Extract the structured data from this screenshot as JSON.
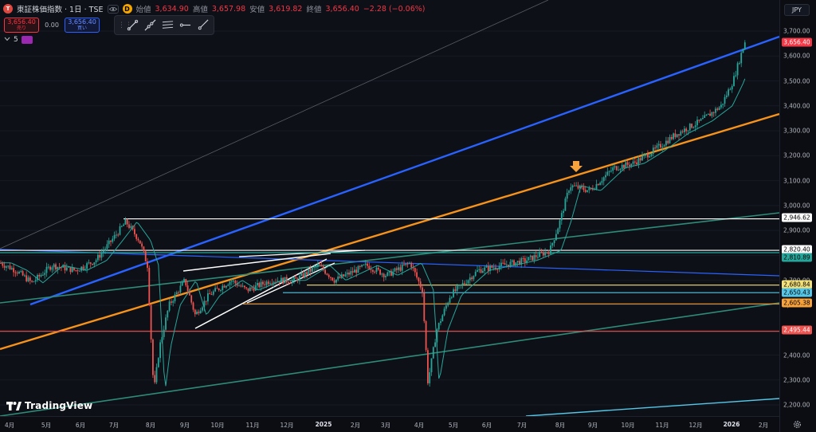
{
  "header": {
    "symbol_icon": "T",
    "symbol": "東証株価指数 · 1日 · TSE",
    "d_badge": "D",
    "ohlc": [
      {
        "label": "始値",
        "value": "3,634.90"
      },
      {
        "label": "高値",
        "value": "3,657.98"
      },
      {
        "label": "安値",
        "value": "3,619.82"
      },
      {
        "label": "終値",
        "value": "3,656.40"
      }
    ],
    "change": "−2.28 (−0.06%)"
  },
  "trade": {
    "sell_price": "3,656.40",
    "sell_label": "売り",
    "spread": "0.00",
    "buy_price": "3,656.40",
    "buy_label": "買い"
  },
  "indicator": {
    "collapse_icon": "chevron-down-icon",
    "count": "5"
  },
  "toolbar": {
    "tools": [
      "trend-line-icon",
      "extended-line-icon",
      "parallel-channel-icon",
      "horizontal-ray-icon",
      "ray-icon"
    ]
  },
  "currency": "JPY",
  "price_axis": {
    "ticks": [
      "3,700.00",
      "3,600.00",
      "3,500.00",
      "3,400.00",
      "3,300.00",
      "3,200.00",
      "3,100.00",
      "3,000.00",
      "2,900.00",
      "2,800.00",
      "2,700.00",
      "2,600.00",
      "2,500.00",
      "2,400.00",
      "2,300.00",
      "2,200.00"
    ],
    "tags": [
      {
        "label": "3,656.40",
        "color": "#f23645",
        "text": "#ffffff"
      },
      {
        "label": "2,946.62",
        "color": "#ffffff",
        "text": "#000000"
      },
      {
        "label": "2,820.40",
        "color": "#ffffff",
        "text": "#000000"
      },
      {
        "label": "2,810.89",
        "color": "#26a69a",
        "text": "#000000"
      },
      {
        "label": "2,680.84",
        "color": "#f5e17a",
        "text": "#000000"
      },
      {
        "label": "2,650.43",
        "color": "#56c6e6",
        "text": "#000000"
      },
      {
        "label": "2,605.38",
        "color": "#f7a23b",
        "text": "#000000"
      },
      {
        "label": "2,495.44",
        "color": "#ef5350",
        "text": "#ffffff"
      }
    ]
  },
  "time_axis": {
    "ticks": [
      {
        "label": "4月",
        "bold": false
      },
      {
        "label": "5月",
        "bold": false
      },
      {
        "label": "6月",
        "bold": false
      },
      {
        "label": "7月",
        "bold": false
      },
      {
        "label": "8月",
        "bold": false
      },
      {
        "label": "9月",
        "bold": false
      },
      {
        "label": "10月",
        "bold": false
      },
      {
        "label": "11月",
        "bold": false
      },
      {
        "label": "12月",
        "bold": false
      },
      {
        "label": "2025",
        "bold": true
      },
      {
        "label": "2月",
        "bold": false
      },
      {
        "label": "3月",
        "bold": false
      },
      {
        "label": "4月",
        "bold": false
      },
      {
        "label": "5月",
        "bold": false
      },
      {
        "label": "6月",
        "bold": false
      },
      {
        "label": "7月",
        "bold": false
      },
      {
        "label": "8月",
        "bold": false
      },
      {
        "label": "9月",
        "bold": false
      },
      {
        "label": "10月",
        "bold": false
      },
      {
        "label": "11月",
        "bold": false
      },
      {
        "label": "12月",
        "bold": false
      },
      {
        "label": "2026",
        "bold": true
      },
      {
        "label": "2月",
        "bold": false
      }
    ]
  },
  "logo": {
    "text": "TradingView"
  },
  "colors": {
    "up": "#26a69a",
    "down": "#ef5350",
    "blue_channel": "#2962ff",
    "orange_channel": "#f7931a",
    "teal_channel": "#2e8b78",
    "ma_line": "#26a69a"
  },
  "chart_data": {
    "type": "candlestick",
    "series_name": "東証株価指数",
    "ylim": [
      2150,
      3760
    ],
    "close_series": [
      [
        "2024-04",
        2750
      ],
      [
        "2024-05",
        2740
      ],
      [
        "2024-06",
        2770
      ],
      [
        "2024-07",
        2920
      ],
      [
        "2024-08-05",
        2230
      ],
      [
        "2024-08",
        2600
      ],
      [
        "2024-09",
        2640
      ],
      [
        "2024-10",
        2700
      ],
      [
        "2024-11",
        2690
      ],
      [
        "2024-12",
        2730
      ],
      [
        "2025-01",
        2750
      ],
      [
        "2025-02",
        2720
      ],
      [
        "2025-03",
        2780
      ],
      [
        "2025-04-07",
        2300
      ],
      [
        "2025-04",
        2640
      ],
      [
        "2025-05",
        2720
      ],
      [
        "2025-06",
        2790
      ],
      [
        "2025-07",
        2900
      ],
      [
        "2025-08",
        3100
      ],
      [
        "2025-09",
        3140
      ],
      [
        "2025-10",
        3220
      ],
      [
        "2025-11",
        3320
      ],
      [
        "2025-12",
        3420
      ],
      [
        "2026-01",
        3656.4
      ]
    ],
    "horizontal_levels": [
      2946.62,
      2820.4,
      2810.89,
      2680.84,
      2650.43,
      2605.38,
      2495.44
    ],
    "last_price": 3656.4
  }
}
